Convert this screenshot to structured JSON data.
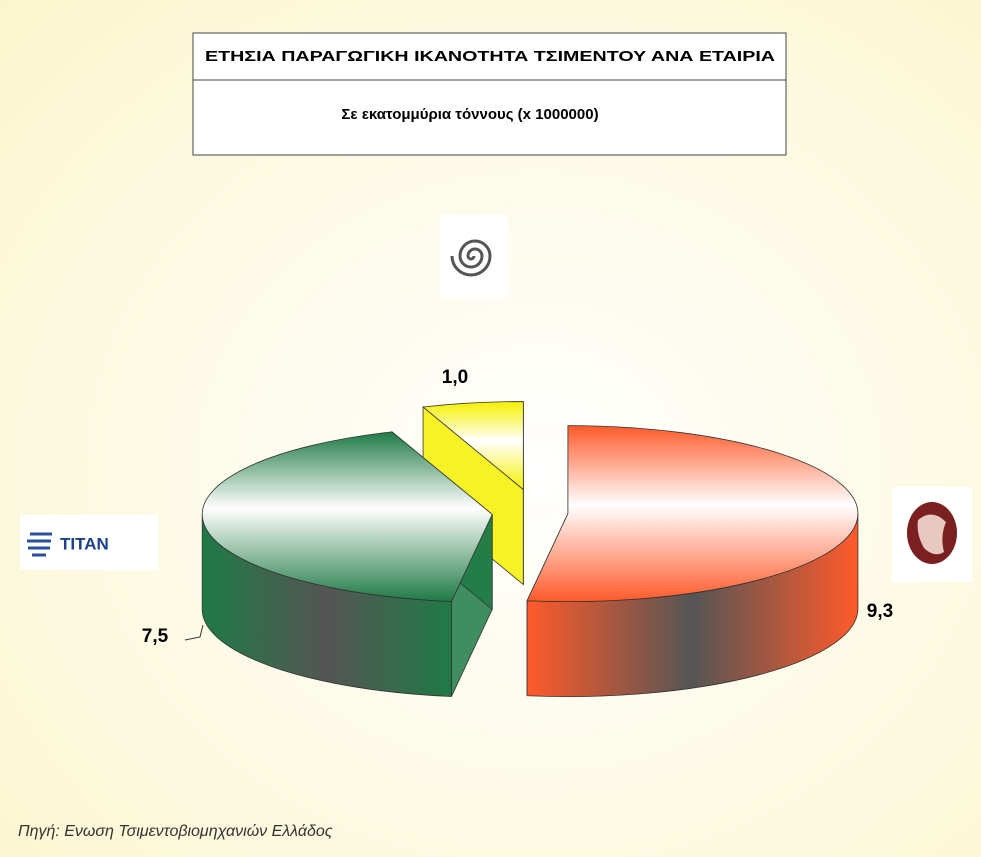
{
  "chart_data": {
    "type": "pie",
    "title": "ΕΤΗΣΙΑ ΠΑΡΑΓΩΓΙΚΗ ΙΚΑΝΟΤΗΤΑ ΤΣΙΜΕΝΤΟΥ ΑΝΑ ΕΤΑΙΡΙΑ",
    "subtitle": "Σε εκατομμύρια τόννους (x 1000000)",
    "categories": [
      null,
      "TITAN",
      null
    ],
    "values": [
      9.3,
      7.5,
      1.0
    ],
    "value_labels": [
      "9,3",
      "7,5",
      "1,0"
    ],
    "colors": [
      "#ff5a2a",
      "#1f7a45",
      "#f5f000"
    ],
    "source": "Πηγή: Ενωση Τσιμεντοβιομηχανιών Ελλάδος"
  }
}
